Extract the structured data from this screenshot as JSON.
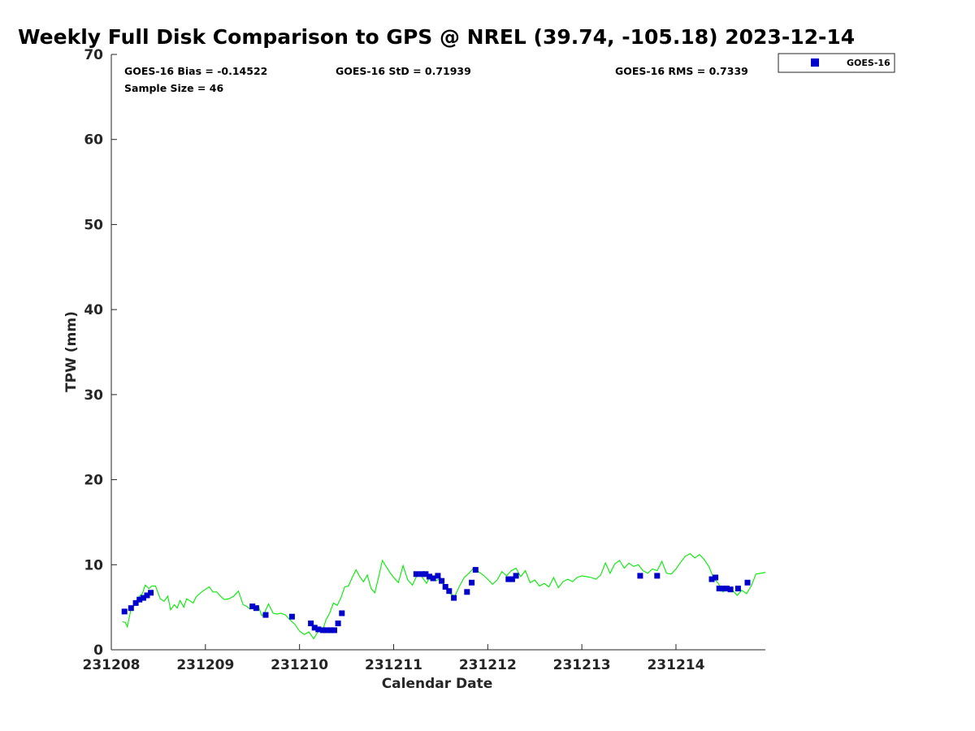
{
  "chart_data": {
    "type": "scatter",
    "title": "Weekly Full Disk Comparison to GPS @ NREL (39.74, -105.18) 2023-12-14",
    "xlabel": "Calendar Date",
    "ylabel": "TPW (mm)",
    "xlim": [
      0,
      6.95
    ],
    "ylim": [
      0,
      70
    ],
    "x_ticks": [
      {
        "value": 0,
        "label": "231208"
      },
      {
        "value": 1,
        "label": "231209"
      },
      {
        "value": 2,
        "label": "231210"
      },
      {
        "value": 3,
        "label": "231211"
      },
      {
        "value": 4,
        "label": "231212"
      },
      {
        "value": 5,
        "label": "231213"
      },
      {
        "value": 6,
        "label": "231214"
      }
    ],
    "y_ticks": [
      0,
      10,
      20,
      30,
      40,
      50,
      60,
      70
    ],
    "grid": false,
    "legend": {
      "position": "outside-top-right",
      "entries": [
        "GOES-16"
      ]
    },
    "stats": {
      "bias": "GOES-16 Bias = -0.14522",
      "std": "GOES-16 StD = 0.71939",
      "rms": "GOES-16 RMS = 0.7339",
      "sample_size": "Sample Size = 46"
    },
    "series": [
      {
        "name": "GOES-16",
        "kind": "marker",
        "color": "#0000cc",
        "marker": "square",
        "x": [
          0.14,
          0.21,
          0.26,
          0.3,
          0.34,
          0.38,
          0.42,
          1.5,
          1.54,
          1.64,
          1.92,
          2.12,
          2.16,
          2.2,
          2.25,
          2.29,
          2.33,
          2.37,
          2.41,
          2.45,
          3.24,
          3.3,
          3.34,
          3.38,
          3.42,
          3.47,
          3.51,
          3.55,
          3.59,
          3.64,
          3.78,
          3.83,
          3.87,
          4.22,
          4.26,
          4.3,
          5.62,
          5.8,
          6.38,
          6.42,
          6.46,
          6.5,
          6.54,
          6.58,
          6.66,
          6.76
        ],
        "y": [
          4.5,
          4.9,
          5.5,
          5.9,
          6.1,
          6.4,
          6.7,
          5.1,
          4.9,
          4.1,
          3.9,
          3.1,
          2.6,
          2.4,
          2.3,
          2.3,
          2.3,
          2.3,
          3.1,
          4.3,
          8.9,
          8.9,
          8.9,
          8.6,
          8.4,
          8.7,
          8.1,
          7.4,
          6.9,
          6.1,
          6.8,
          7.9,
          9.4,
          8.3,
          8.3,
          8.7,
          8.7,
          8.7,
          8.3,
          8.5,
          7.2,
          7.2,
          7.2,
          7.1,
          7.2,
          7.9
        ]
      },
      {
        "name": "",
        "kind": "line",
        "color": "#00ee00",
        "x": [
          0.12,
          0.15,
          0.17,
          0.21,
          0.25,
          0.3,
          0.33,
          0.36,
          0.4,
          0.43,
          0.47,
          0.52,
          0.56,
          0.6,
          0.63,
          0.67,
          0.7,
          0.73,
          0.77,
          0.8,
          0.83,
          0.87,
          0.9,
          0.93,
          0.96,
          1.0,
          1.04,
          1.08,
          1.12,
          1.16,
          1.2,
          1.25,
          1.3,
          1.35,
          1.4,
          1.44,
          1.47,
          1.5,
          1.53,
          1.56,
          1.6,
          1.63,
          1.67,
          1.72,
          1.76,
          1.8,
          1.85,
          1.9,
          1.95,
          2.0,
          2.05,
          2.1,
          2.15,
          2.2,
          2.25,
          2.28,
          2.32,
          2.36,
          2.4,
          2.44,
          2.48,
          2.52,
          2.56,
          2.6,
          2.64,
          2.68,
          2.72,
          2.76,
          2.8,
          2.84,
          2.88,
          2.92,
          2.96,
          3.0,
          3.05,
          3.1,
          3.15,
          3.2,
          3.25,
          3.3,
          3.35,
          3.4,
          3.45,
          3.5,
          3.55,
          3.6,
          3.65,
          3.7,
          3.75,
          3.8,
          3.85,
          3.9,
          3.95,
          4.0,
          4.05,
          4.1,
          4.15,
          4.2,
          4.25,
          4.3,
          4.35,
          4.4,
          4.45,
          4.5,
          4.55,
          4.6,
          4.65,
          4.7,
          4.75,
          4.8,
          4.85,
          4.9,
          4.95,
          5.0,
          5.05,
          5.1,
          5.15,
          5.2,
          5.25,
          5.3,
          5.35,
          5.4,
          5.45,
          5.5,
          5.55,
          5.6,
          5.65,
          5.7,
          5.75,
          5.8,
          5.85,
          5.9,
          5.95,
          6.0,
          6.05,
          6.1,
          6.15,
          6.2,
          6.25,
          6.3,
          6.35,
          6.4,
          6.45,
          6.5,
          6.55,
          6.6,
          6.65,
          6.7,
          6.75,
          6.8,
          6.85,
          6.9,
          6.95
        ],
        "y": [
          3.3,
          3.2,
          2.7,
          4.8,
          5.3,
          6.3,
          6.6,
          7.6,
          7.2,
          7.5,
          7.5,
          6.0,
          5.7,
          6.3,
          4.7,
          5.3,
          4.9,
          5.8,
          5.0,
          6.0,
          5.8,
          5.5,
          6.2,
          6.5,
          6.8,
          7.1,
          7.4,
          6.8,
          6.8,
          6.3,
          5.9,
          6.0,
          6.3,
          6.9,
          5.3,
          5.1,
          4.8,
          4.9,
          5.0,
          5.2,
          4.0,
          4.4,
          5.4,
          4.3,
          4.2,
          4.3,
          4.1,
          3.5,
          3.0,
          2.2,
          1.8,
          2.1,
          1.3,
          2.2,
          2.4,
          3.5,
          4.3,
          5.5,
          5.2,
          6.1,
          7.4,
          7.5,
          8.5,
          9.4,
          8.6,
          8.0,
          8.8,
          7.2,
          6.7,
          8.5,
          10.5,
          9.8,
          9.1,
          8.5,
          7.9,
          9.9,
          8.2,
          7.6,
          8.8,
          8.6,
          7.8,
          8.9,
          8.1,
          8.4,
          7.2,
          6.6,
          6.3,
          7.5,
          8.5,
          9.0,
          9.6,
          9.2,
          8.8,
          8.3,
          7.7,
          8.2,
          9.2,
          8.7,
          9.3,
          9.6,
          8.6,
          9.3,
          7.9,
          8.2,
          7.5,
          7.8,
          7.4,
          8.5,
          7.3,
          8.0,
          8.3,
          8.0,
          8.5,
          8.7,
          8.6,
          8.5,
          8.3,
          8.8,
          10.2,
          9.0,
          10.1,
          10.5,
          9.6,
          10.2,
          9.8,
          10.0,
          9.3,
          9.0,
          9.5,
          9.3,
          10.4,
          9.0,
          8.9,
          9.5,
          10.3,
          11.0,
          11.3,
          10.8,
          11.2,
          10.6,
          9.8,
          8.4,
          7.8,
          6.8,
          7.4,
          7.0,
          6.4,
          7.0,
          6.6,
          7.5,
          8.9,
          9.0,
          9.1
        ]
      }
    ]
  }
}
